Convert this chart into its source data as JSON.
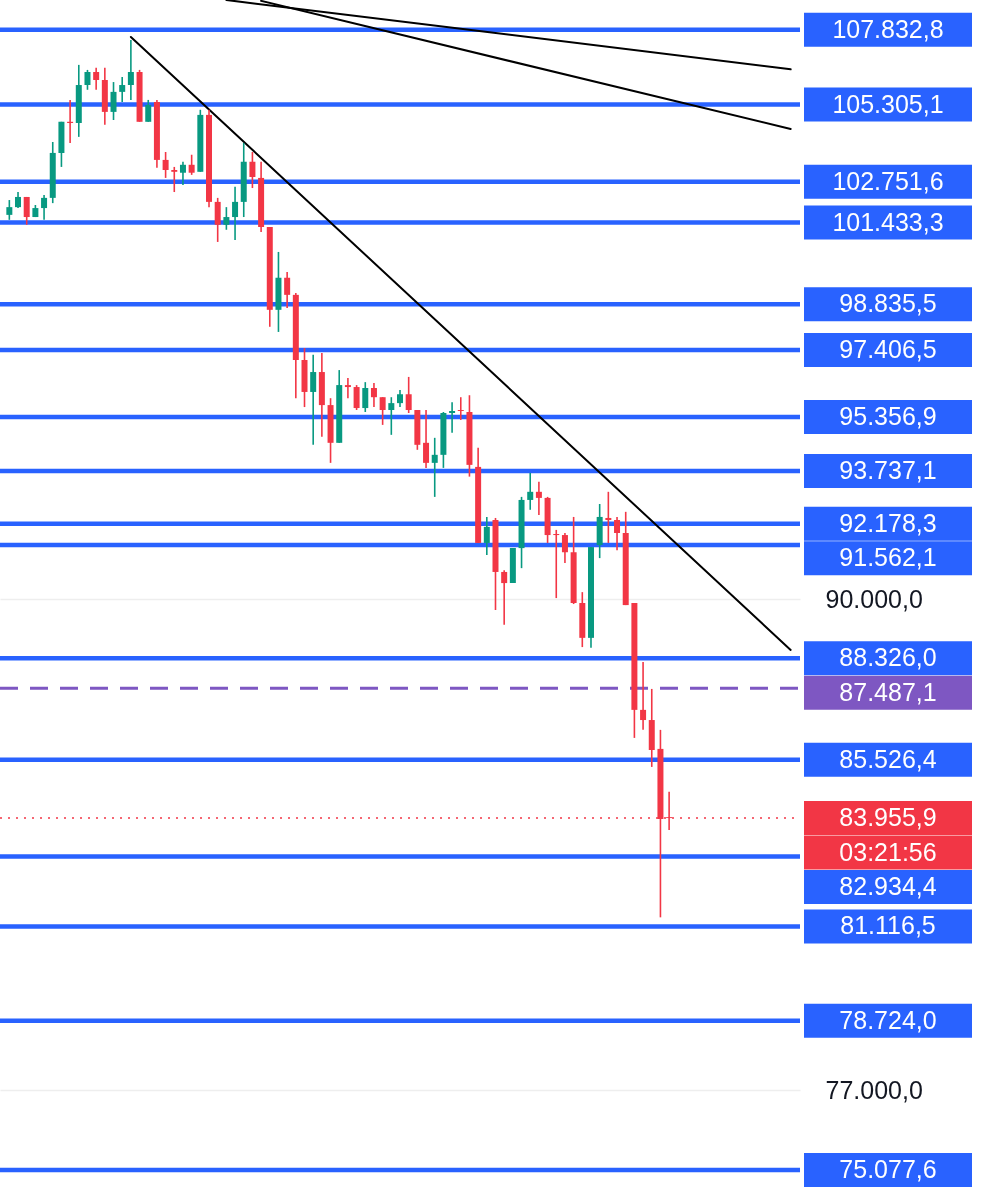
{
  "chart_data": {
    "type": "candlestick",
    "categories": [
      null,
      null,
      null,
      null,
      null,
      null,
      null,
      null,
      null,
      null,
      null,
      null,
      null,
      null,
      null,
      null,
      null,
      null,
      null,
      null,
      null,
      null,
      null,
      null,
      null,
      null,
      null,
      null,
      null,
      null,
      null,
      null,
      null,
      null,
      null,
      null,
      null,
      null,
      null,
      null,
      null,
      null,
      null,
      null,
      null,
      null,
      null,
      null,
      null,
      null,
      null,
      null,
      null,
      null,
      null,
      null,
      null,
      null,
      null,
      null,
      null,
      null,
      null,
      null,
      null,
      null,
      null,
      null,
      null,
      null,
      null,
      null,
      null,
      null,
      null,
      null,
      null,
      null,
      null,
      null,
      null,
      null,
      null,
      null,
      null,
      null,
      null,
      null,
      null,
      null,
      null
    ],
    "ohlc": [
      [
        101680,
        102160,
        101520,
        101930
      ],
      [
        101930,
        102420,
        101900,
        102260
      ],
      [
        102260,
        102260,
        101360,
        101610
      ],
      [
        101610,
        102000,
        101610,
        101900
      ],
      [
        101900,
        102320,
        101520,
        102230
      ],
      [
        102230,
        104060,
        102060,
        103700
      ],
      [
        103700,
        104730,
        103240,
        104730
      ],
      [
        104730,
        105460,
        104030,
        104690
      ],
      [
        104690,
        106640,
        104230,
        105960
      ],
      [
        105960,
        106470,
        105800,
        106400
      ],
      [
        106400,
        106540,
        105800,
        106130
      ],
      [
        106130,
        106540,
        104630,
        105060
      ],
      [
        105060,
        106060,
        104790,
        105730
      ],
      [
        105730,
        106230,
        105390,
        105960
      ],
      [
        105960,
        107490,
        105460,
        106400
      ],
      [
        106400,
        106470,
        104730,
        104730
      ],
      [
        104730,
        105460,
        104730,
        105290
      ],
      [
        105390,
        105460,
        103210,
        103470
      ],
      [
        103470,
        103730,
        102880,
        103140
      ],
      [
        103140,
        103240,
        102420,
        103080
      ],
      [
        103050,
        103410,
        102650,
        103310
      ],
      [
        103310,
        103640,
        102980,
        103050
      ],
      [
        103080,
        105130,
        103080,
        104960
      ],
      [
        104960,
        105130,
        101930,
        102100
      ],
      [
        102100,
        102230,
        100810,
        101360
      ],
      [
        101360,
        101930,
        101200,
        101610
      ],
      [
        101610,
        102590,
        100870,
        102100
      ],
      [
        102100,
        104030,
        101610,
        103410
      ],
      [
        103410,
        103730,
        102550,
        102910
      ],
      [
        102880,
        103410,
        101130,
        101290
      ],
      [
        101290,
        101290,
        98130,
        98660
      ],
      [
        98660,
        100490,
        97970,
        99670
      ],
      [
        99670,
        99850,
        98720,
        99130
      ],
      [
        99130,
        99190,
        95930,
        97100
      ],
      [
        97100,
        97470,
        95660,
        96120
      ],
      [
        96120,
        97260,
        94520,
        96730
      ],
      [
        96730,
        97320,
        94760,
        95720
      ],
      [
        95720,
        95930,
        93980,
        94580
      ],
      [
        94580,
        96790,
        94580,
        96330
      ],
      [
        96330,
        96550,
        95930,
        96270
      ],
      [
        96270,
        96330,
        95570,
        95630
      ],
      [
        95630,
        96420,
        95510,
        96240
      ],
      [
        96240,
        96390,
        95660,
        95960
      ],
      [
        95960,
        95960,
        95120,
        95570
      ],
      [
        95570,
        95960,
        94820,
        95780
      ],
      [
        95780,
        96180,
        95660,
        96050
      ],
      [
        96050,
        96580,
        95480,
        95570
      ],
      [
        95570,
        95570,
        94370,
        94520
      ],
      [
        94580,
        95570,
        93830,
        93980
      ],
      [
        93980,
        94730,
        92970,
        94220
      ],
      [
        94220,
        95510,
        93830,
        95480
      ],
      [
        95480,
        95810,
        94880,
        95540
      ],
      [
        95570,
        95960,
        95270,
        95540
      ],
      [
        95510,
        96020,
        93570,
        93920
      ],
      [
        93860,
        94430,
        91620,
        91620
      ],
      [
        91620,
        92380,
        91270,
        92090
      ],
      [
        92290,
        92350,
        89690,
        90780
      ],
      [
        90780,
        90830,
        89270,
        90460
      ],
      [
        90460,
        91470,
        90460,
        91470
      ],
      [
        91470,
        92970,
        90890,
        92880
      ],
      [
        92880,
        93680,
        92590,
        93120
      ],
      [
        93120,
        93420,
        92440,
        92940
      ],
      [
        92940,
        92970,
        91620,
        91850
      ],
      [
        91880,
        92000,
        90030,
        91850
      ],
      [
        91850,
        91910,
        91040,
        91350
      ],
      [
        91350,
        92380,
        89860,
        89890
      ],
      [
        89890,
        90200,
        88640,
        88900
      ],
      [
        88900,
        91500,
        88620,
        91500
      ],
      [
        91560,
        92760,
        91180,
        92380
      ],
      [
        92350,
        93120,
        91620,
        92290
      ],
      [
        92290,
        92380,
        91410,
        91910
      ],
      [
        91910,
        92530,
        89830,
        89830
      ],
      [
        89890,
        89890,
        86120,
        86890
      ],
      [
        86890,
        88220,
        86340,
        86610
      ],
      [
        86610,
        87470,
        85330,
        85790
      ],
      [
        85820,
        86340,
        81350,
        83930
      ],
      [
        83980,
        84660,
        83640,
        83955.9
      ],
      null,
      null,
      null,
      null,
      null,
      null,
      null,
      null,
      null,
      null,
      null,
      null,
      null,
      null
    ],
    "colors": [
      "#089981",
      "#089981",
      "#f23645",
      "#089981",
      "#089981",
      "#089981",
      "#089981",
      "#f23645",
      "#089981",
      "#089981",
      "#f23645",
      "#f23645",
      "#089981",
      "#089981",
      "#089981",
      "#f23645",
      "#089981",
      "#f23645",
      "#f23645",
      "#f23645",
      "#089981",
      "#f23645",
      "#089981",
      "#f23645",
      "#f23645",
      "#089981",
      "#089981",
      "#089981",
      "#f23645",
      "#f23645",
      "#f23645",
      "#089981",
      "#f23645",
      "#f23645",
      "#f23645",
      "#089981",
      "#f23645",
      "#f23645",
      "#089981",
      "#f23645",
      "#f23645",
      "#089981",
      "#f23645",
      "#f23645",
      "#089981",
      "#089981",
      "#f23645",
      "#f23645",
      "#f23645",
      "#089981",
      "#089981",
      "#089981",
      "#f23645",
      "#f23645",
      "#f23645",
      "#089981",
      "#f23645",
      "#f23645",
      "#089981",
      "#089981",
      "#089981",
      "#f23645",
      "#f23645",
      "#f23645",
      "#f23645",
      "#f23645",
      "#f23645",
      "#089981",
      "#089981",
      "#f23645",
      "#f23645",
      "#f23645",
      "#f23645",
      "#f23645",
      "#f23645",
      "#f23645",
      "#f23645",
      null,
      null,
      null,
      null,
      null,
      null,
      null,
      null,
      null,
      null,
      null,
      null,
      null,
      null
    ],
    "series": [
      {
        "type": "line",
        "color": "#000000",
        "values": [
          null,
          null,
          null,
          null,
          null,
          null,
          null,
          null,
          null,
          null,
          null,
          null,
          null,
          null,
          107590,
          null,
          null,
          null,
          null,
          null,
          null,
          null,
          null,
          null,
          null,
          null,
          null,
          null,
          null,
          null,
          null,
          null,
          null,
          null,
          null,
          null,
          null,
          null,
          null,
          null,
          null,
          null,
          null,
          null,
          null,
          null,
          null,
          null,
          null,
          null,
          null,
          null,
          null,
          null,
          null,
          null,
          null,
          null,
          null,
          null,
          null,
          null,
          null,
          null,
          null,
          null,
          null,
          null,
          null,
          null,
          null,
          null,
          null,
          null,
          null,
          null,
          null,
          null,
          null,
          null,
          null,
          null,
          null,
          null,
          null,
          null,
          null,
          null,
          null,
          null,
          88560
        ]
      },
      {
        "type": "line",
        "color": "#000000",
        "values": [
          null,
          null,
          null,
          null,
          null,
          null,
          null,
          null,
          null,
          null,
          null,
          null,
          null,
          null,
          null,
          null,
          null,
          null,
          null,
          null,
          null,
          null,
          null,
          null,
          null,
          108860,
          null,
          null,
          null,
          null,
          null,
          null,
          null,
          null,
          null,
          null,
          null,
          null,
          null,
          null,
          null,
          null,
          null,
          null,
          null,
          null,
          null,
          null,
          null,
          null,
          null,
          null,
          null,
          null,
          null,
          null,
          null,
          null,
          null,
          null,
          null,
          null,
          null,
          null,
          null,
          null,
          null,
          null,
          null,
          null,
          null,
          null,
          null,
          null,
          null,
          null,
          null,
          null,
          null,
          null,
          null,
          null,
          null,
          null,
          null,
          null,
          null,
          null,
          null,
          null,
          106490
        ]
      },
      {
        "type": "line",
        "color": "#000000",
        "values": [
          null,
          null,
          null,
          null,
          null,
          null,
          null,
          null,
          null,
          null,
          null,
          null,
          null,
          null,
          null,
          null,
          null,
          null,
          null,
          null,
          null,
          null,
          null,
          null,
          null,
          null,
          null,
          null,
          null,
          108830,
          null,
          null,
          null,
          null,
          null,
          null,
          null,
          null,
          null,
          null,
          null,
          null,
          null,
          null,
          null,
          null,
          null,
          null,
          null,
          null,
          null,
          null,
          null,
          null,
          null,
          null,
          null,
          null,
          null,
          null,
          null,
          null,
          null,
          null,
          null,
          null,
          null,
          null,
          null,
          null,
          null,
          null,
          null,
          null,
          null,
          null,
          null,
          null,
          null,
          null,
          null,
          null,
          null,
          null,
          null,
          null,
          null,
          null,
          null,
          null,
          104490
        ]
      }
    ],
    "ref_lines": [
      {
        "axis": "y",
        "value": 107832.8,
        "label": "107.832,8",
        "color": "#2962ff",
        "line_style": "solid"
      },
      {
        "axis": "y",
        "value": 105305.1,
        "label": "105.305,1",
        "color": "#2962ff",
        "line_style": "solid"
      },
      {
        "axis": "y",
        "value": 102751.6,
        "label": "102.751,6",
        "color": "#2962ff",
        "line_style": "solid"
      },
      {
        "axis": "y",
        "value": 101433.3,
        "label": "101.433,3",
        "color": "#2962ff",
        "line_style": "solid"
      },
      {
        "axis": "y",
        "value": 98835.5,
        "label": "98.835,5",
        "color": "#2962ff",
        "line_style": "solid"
      },
      {
        "axis": "y",
        "value": 97406.5,
        "label": "97.406,5",
        "color": "#2962ff",
        "line_style": "solid"
      },
      {
        "axis": "y",
        "value": 95356.9,
        "label": "95.356,9",
        "color": "#2962ff",
        "line_style": "solid"
      },
      {
        "axis": "y",
        "value": 93737.1,
        "label": "93.737,1",
        "color": "#2962ff",
        "line_style": "solid"
      },
      {
        "axis": "y",
        "value": 92178.3,
        "label": "92.178,3",
        "color": "#2962ff",
        "line_style": "solid"
      },
      {
        "axis": "y",
        "value": 91562.1,
        "label": "91.562,1",
        "color": "#2962ff",
        "line_style": "solid"
      },
      {
        "axis": "y",
        "value": 88326.0,
        "label": "88.326,0",
        "color": "#2962ff",
        "line_style": "solid"
      },
      {
        "axis": "y",
        "value": 87487.1,
        "label": "87.487,1",
        "color": "#7e57c2",
        "line_style": "dashed"
      },
      {
        "axis": "y",
        "value": 85526.4,
        "label": "85.526,4",
        "color": "#2962ff",
        "line_style": "solid"
      },
      {
        "axis": "y",
        "value": 83955.9,
        "label": "83.955,9",
        "color": "#f23645",
        "line_style": "dotted"
      },
      {
        "axis": "y",
        "value": 82934.4,
        "label": "82.934,4",
        "color": "#2962ff",
        "line_style": "solid"
      },
      {
        "axis": "y",
        "value": 81116.5,
        "label": "81.116,5",
        "color": "#2962ff",
        "line_style": "solid"
      },
      {
        "axis": "y",
        "value": 78724.0,
        "label": "78.724,0",
        "color": "#2962ff",
        "line_style": "solid"
      },
      {
        "axis": "y",
        "value": 75077.6,
        "label": "75.077,6",
        "color": "#2962ff",
        "line_style": "solid"
      }
    ],
    "annotations": [
      "03:21:56"
    ],
    "log": "y",
    "ylim": [
      74390,
      108860
    ],
    "yticks": [
      {
        "value": 90000,
        "label": "90.000,0"
      },
      {
        "value": 77000,
        "label": "77.000,0"
      }
    ],
    "tick_labels": "y",
    "grid": "y"
  }
}
